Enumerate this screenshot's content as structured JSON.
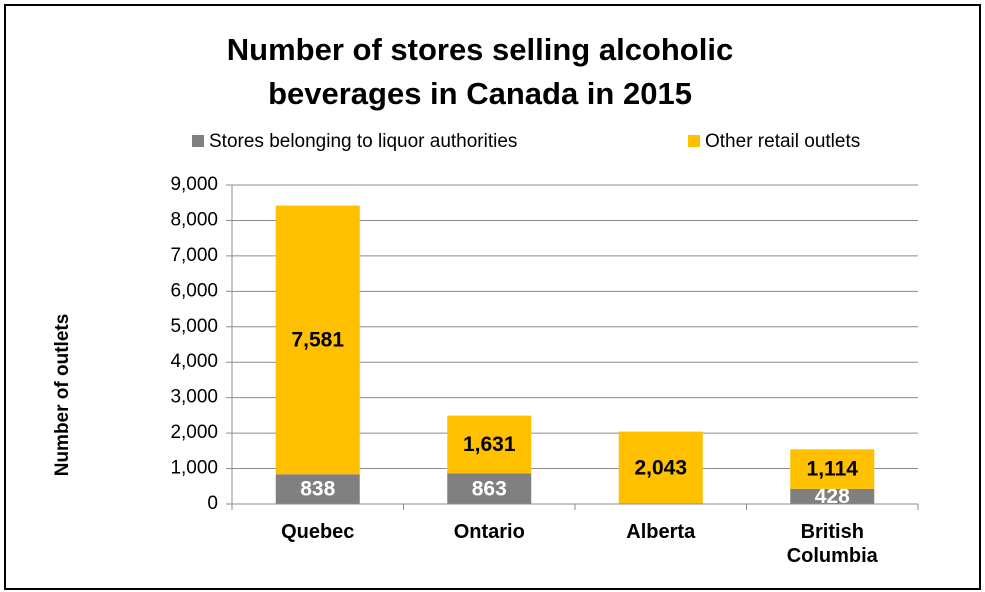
{
  "chart_data": {
    "type": "stacked_bar",
    "title": "Number of stores selling alcoholic beverages in Canada in 2015",
    "y_label": "Number of outlets",
    "categories": [
      "Quebec",
      "Ontario",
      "Alberta",
      "British Columbia"
    ],
    "series": [
      {
        "name": "Stores belonging to liquor authorities",
        "color": "#808080",
        "values": [
          838,
          863,
          0,
          428
        ],
        "value_labels": [
          "838",
          "863",
          null,
          "428"
        ]
      },
      {
        "name": "Other retail outlets",
        "color": "#ffc000",
        "values": [
          7581,
          1631,
          2043,
          1114
        ],
        "value_labels": [
          "7,581",
          "1,631",
          "2,043",
          "1,114"
        ]
      }
    ],
    "ylim": [
      0,
      9000
    ],
    "yticks": [
      {
        "value": 0,
        "label": "0"
      },
      {
        "value": 1000,
        "label": "1,000"
      },
      {
        "value": 2000,
        "label": "2,000"
      },
      {
        "value": 3000,
        "label": "3,000"
      },
      {
        "value": 4000,
        "label": "4,000"
      },
      {
        "value": 5000,
        "label": "5,000"
      },
      {
        "value": 6000,
        "label": "6,000"
      },
      {
        "value": 7000,
        "label": "7,000"
      },
      {
        "value": 8000,
        "label": "8,000"
      },
      {
        "value": 9000,
        "label": "9,000"
      }
    ],
    "grid": true,
    "legend": "top"
  }
}
